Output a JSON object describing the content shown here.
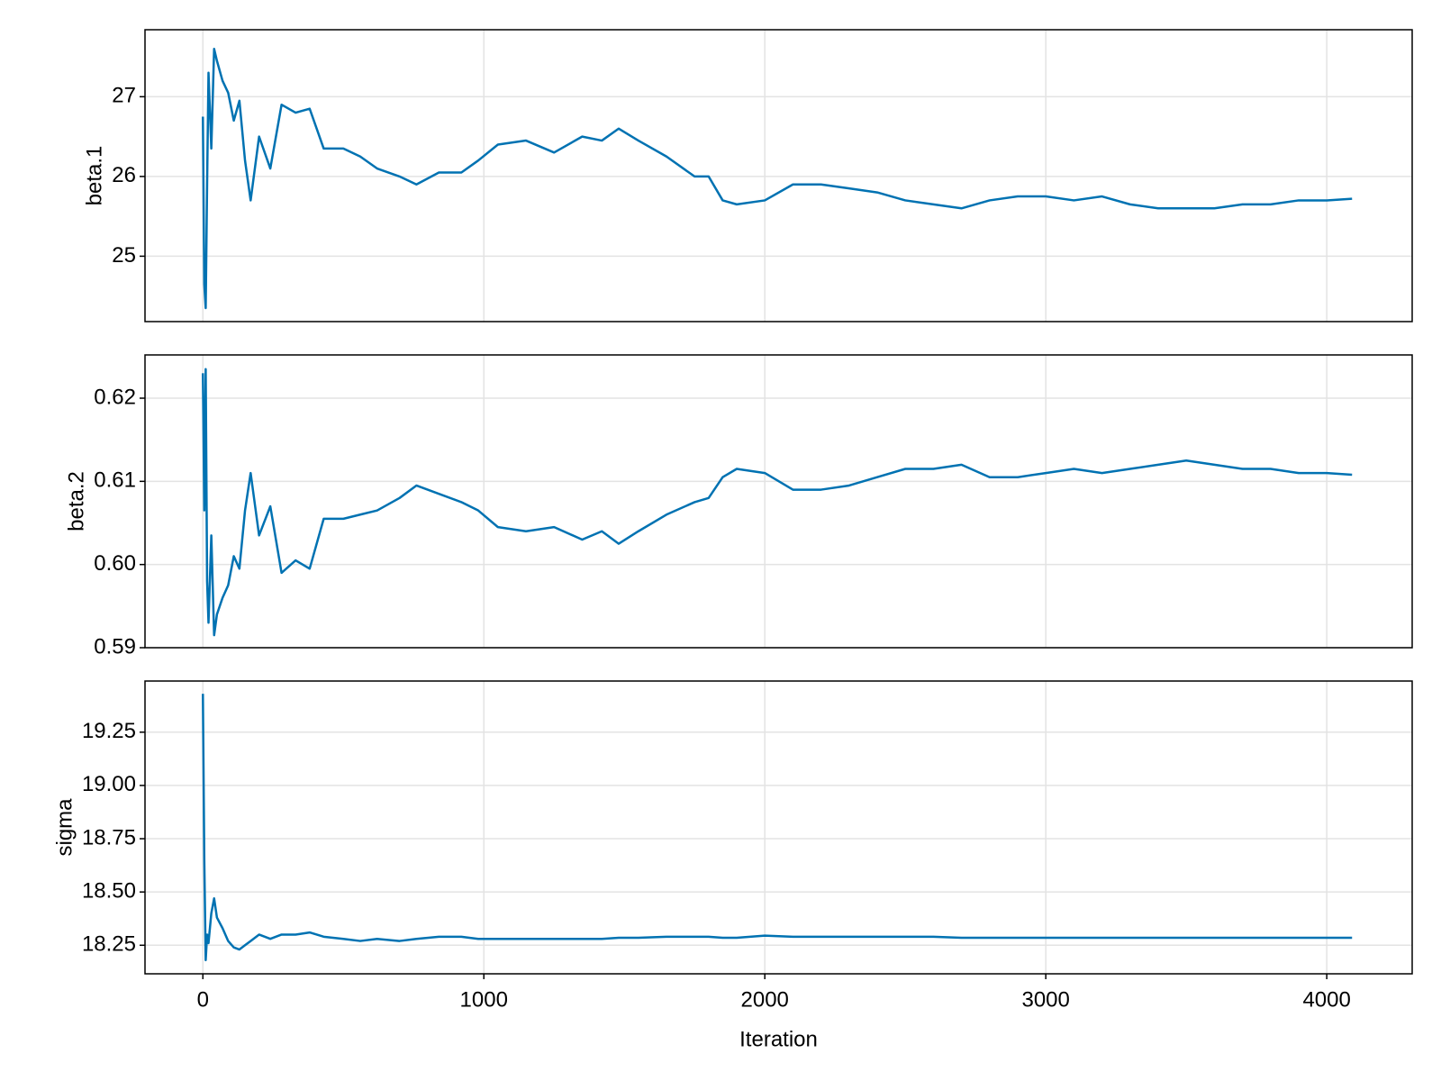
{
  "chart_data": [
    {
      "type": "line",
      "ylabel": "beta.1",
      "color": "#0072b2",
      "grid": true,
      "x": [
        0,
        5,
        10,
        15,
        20,
        30,
        40,
        50,
        70,
        90,
        110,
        130,
        150,
        170,
        200,
        240,
        280,
        330,
        380,
        430,
        500,
        560,
        620,
        700,
        760,
        840,
        920,
        980,
        1050,
        1150,
        1250,
        1350,
        1420,
        1480,
        1550,
        1650,
        1750,
        1800,
        1850,
        1900,
        2000,
        2100,
        2200,
        2300,
        2400,
        2500,
        2600,
        2700,
        2800,
        2900,
        3000,
        3100,
        3200,
        3300,
        3400,
        3500,
        3600,
        3700,
        3800,
        3900,
        4000,
        4090
      ],
      "values": [
        26.75,
        24.65,
        24.35,
        25.9,
        27.3,
        26.35,
        27.6,
        27.45,
        27.2,
        27.05,
        26.7,
        26.95,
        26.2,
        25.7,
        26.5,
        26.1,
        26.9,
        26.8,
        26.85,
        26.35,
        26.35,
        26.25,
        26.1,
        26.0,
        25.9,
        26.05,
        26.05,
        26.2,
        26.4,
        26.45,
        26.3,
        26.5,
        26.45,
        26.6,
        26.45,
        26.25,
        26.0,
        26.0,
        25.7,
        25.65,
        25.7,
        25.9,
        25.9,
        25.85,
        25.8,
        25.7,
        25.65,
        25.6,
        25.7,
        25.75,
        25.75,
        25.7,
        25.75,
        25.65,
        25.6,
        25.6,
        25.6,
        25.65,
        25.65,
        25.7,
        25.7,
        25.72
      ],
      "xlim": [
        -206,
        4304
      ],
      "xticks": [
        0,
        1000,
        2000,
        3000,
        4000
      ],
      "ylim": [
        24.18,
        27.84
      ],
      "yticks": [
        25,
        26,
        27
      ]
    },
    {
      "type": "line",
      "ylabel": "beta.2",
      "color": "#0072b2",
      "grid": true,
      "x": [
        0,
        5,
        10,
        15,
        20,
        30,
        40,
        50,
        70,
        90,
        110,
        130,
        150,
        170,
        200,
        240,
        280,
        330,
        380,
        430,
        500,
        560,
        620,
        700,
        760,
        840,
        920,
        980,
        1050,
        1150,
        1250,
        1350,
        1420,
        1480,
        1550,
        1650,
        1750,
        1800,
        1850,
        1900,
        2000,
        2100,
        2200,
        2300,
        2400,
        2500,
        2600,
        2700,
        2800,
        2900,
        3000,
        3100,
        3200,
        3300,
        3400,
        3500,
        3600,
        3700,
        3800,
        3900,
        4000,
        4090
      ],
      "values": [
        0.623,
        0.6065,
        0.6235,
        0.598,
        0.593,
        0.6035,
        0.5915,
        0.594,
        0.596,
        0.5975,
        0.601,
        0.5995,
        0.6065,
        0.611,
        0.6035,
        0.607,
        0.599,
        0.6005,
        0.5995,
        0.6055,
        0.6055,
        0.606,
        0.6065,
        0.608,
        0.6095,
        0.6085,
        0.6075,
        0.6065,
        0.6045,
        0.604,
        0.6045,
        0.603,
        0.604,
        0.6025,
        0.604,
        0.606,
        0.6075,
        0.608,
        0.6105,
        0.6115,
        0.611,
        0.609,
        0.609,
        0.6095,
        0.6105,
        0.6115,
        0.6115,
        0.612,
        0.6105,
        0.6105,
        0.611,
        0.6115,
        0.611,
        0.6115,
        0.612,
        0.6125,
        0.612,
        0.6115,
        0.6115,
        0.611,
        0.611,
        0.6108
      ],
      "xlim": [
        -206,
        4304
      ],
      "xticks": [
        0,
        1000,
        2000,
        3000,
        4000
      ],
      "ylim": [
        0.59,
        0.6252
      ],
      "yticks": [
        0.59,
        {
          "value": 0.6,
          "label": "0.60"
        },
        0.61,
        0.62
      ]
    },
    {
      "type": "line",
      "ylabel": "sigma",
      "xlabel": "Iteration",
      "color": "#0072b2",
      "grid": true,
      "x": [
        0,
        5,
        10,
        15,
        20,
        30,
        40,
        50,
        70,
        90,
        110,
        130,
        150,
        170,
        200,
        240,
        280,
        330,
        380,
        430,
        500,
        560,
        620,
        700,
        760,
        840,
        920,
        980,
        1050,
        1150,
        1250,
        1350,
        1420,
        1480,
        1550,
        1650,
        1750,
        1800,
        1850,
        1900,
        2000,
        2100,
        2200,
        2300,
        2400,
        2500,
        2600,
        2700,
        2800,
        2900,
        3000,
        3100,
        3200,
        3300,
        3400,
        3500,
        3600,
        3700,
        3800,
        3900,
        4000,
        4090
      ],
      "values": [
        19.43,
        18.65,
        18.18,
        18.3,
        18.26,
        18.4,
        18.47,
        18.38,
        18.33,
        18.27,
        18.24,
        18.23,
        18.25,
        18.27,
        18.3,
        18.28,
        18.3,
        18.3,
        18.31,
        18.29,
        18.28,
        18.27,
        18.28,
        18.27,
        18.28,
        18.29,
        18.29,
        18.28,
        18.28,
        18.28,
        18.28,
        18.28,
        18.28,
        18.285,
        18.285,
        18.29,
        18.29,
        18.29,
        18.285,
        18.285,
        18.295,
        18.29,
        18.29,
        18.29,
        18.29,
        18.29,
        18.29,
        18.285,
        18.285,
        18.285,
        18.285,
        18.285,
        18.285,
        18.285,
        18.285,
        18.285,
        18.285,
        18.285,
        18.285,
        18.285,
        18.285,
        18.285
      ],
      "xlim": [
        -206,
        4304
      ],
      "xticks": [
        0,
        1000,
        2000,
        3000,
        4000
      ],
      "ylim": [
        18.116,
        19.49
      ],
      "yticks": [
        {
          "value": 18.25,
          "label": "18.25"
        },
        {
          "value": 18.5,
          "label": "18.50"
        },
        {
          "value": 18.75,
          "label": "18.75"
        },
        {
          "value": 19,
          "label": "19.00"
        },
        {
          "value": 19.25,
          "label": "19.25"
        }
      ]
    }
  ]
}
